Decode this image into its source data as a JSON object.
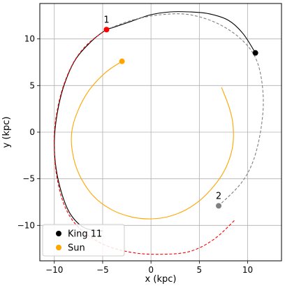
{
  "chart_data": {
    "type": "line",
    "xlabel": "x (kpc)",
    "ylabel": "y (kpc)",
    "xlim": [
      -11.5,
      13.5
    ],
    "ylim": [
      -13.8,
      13.8
    ],
    "xticks": [
      -10,
      -5,
      0,
      5,
      10
    ],
    "yticks": [
      -10,
      -5,
      0,
      5,
      10
    ],
    "grid": true,
    "legend_position": "bottom-left",
    "colors": {
      "king11": "#000000",
      "sun": "#ffa500",
      "king11_alt": "#808080",
      "red_path": "#ff0000",
      "marker1": "#ff0000"
    },
    "legend": [
      {
        "label": "King 11",
        "color": "#000000"
      },
      {
        "label": "Sun",
        "color": "#ffa500"
      }
    ],
    "annotations": [
      {
        "text": "1",
        "x": -4.6,
        "y": 11.0
      },
      {
        "text": "2",
        "x": 7.0,
        "y": -7.9
      }
    ],
    "series": [
      {
        "name": "King 11",
        "style": "solid",
        "color": "#000000",
        "points": [
          [
            10.8,
            8.5
          ],
          [
            9.5,
            10.6
          ],
          [
            8,
            12
          ],
          [
            6,
            12.7
          ],
          [
            4,
            12.9
          ],
          [
            2,
            12.9
          ],
          [
            0,
            12.6
          ],
          [
            -2,
            11.9
          ],
          [
            -4,
            11.2
          ],
          [
            -4.6,
            11
          ],
          [
            -6,
            9.9
          ],
          [
            -7.8,
            7.8
          ],
          [
            -9,
            5
          ],
          [
            -9.7,
            2
          ],
          [
            -10,
            -1
          ],
          [
            -9.8,
            -4
          ],
          [
            -9.1,
            -7
          ],
          [
            -8.2,
            -9
          ],
          [
            -6.8,
            -10.3
          ],
          [
            -5,
            -10.6
          ]
        ]
      },
      {
        "name": "",
        "style": "dashed",
        "color": "#808080",
        "points": [
          [
            -4.6,
            11
          ],
          [
            -2,
            12
          ],
          [
            1,
            12.6
          ],
          [
            4,
            12.6
          ],
          [
            7,
            11.6
          ],
          [
            9.5,
            9.8
          ],
          [
            11,
            7.5
          ],
          [
            11.6,
            4
          ],
          [
            11.4,
            0.5
          ],
          [
            10.6,
            -3
          ],
          [
            9.3,
            -5.5
          ],
          [
            7,
            -7.9
          ]
        ]
      },
      {
        "name": "",
        "style": "dashed",
        "color": "#ff0000",
        "points": [
          [
            -4.6,
            11
          ],
          [
            -6.5,
            9.5
          ],
          [
            -8,
            7.5
          ],
          [
            -9.2,
            4.5
          ],
          [
            -9.9,
            1
          ],
          [
            -10,
            -2
          ],
          [
            -9.7,
            -5
          ],
          [
            -8.9,
            -8
          ],
          [
            -7.5,
            -10.2
          ],
          [
            -5,
            -12
          ],
          [
            -2,
            -12.9
          ],
          [
            1,
            -13.1
          ],
          [
            4,
            -12.8
          ],
          [
            6.5,
            -11.5
          ],
          [
            8.7,
            -9.4
          ]
        ]
      },
      {
        "name": "Sun",
        "style": "solid",
        "color": "#ffa500",
        "points": [
          [
            -3,
            7.6
          ],
          [
            -4.7,
            6.4
          ],
          [
            -6.4,
            4.5
          ],
          [
            -7.6,
            2.2
          ],
          [
            -8.2,
            0
          ],
          [
            -8.1,
            -2.3
          ],
          [
            -7.4,
            -4.6
          ],
          [
            -6,
            -6.8
          ],
          [
            -4.1,
            -8.3
          ],
          [
            -2,
            -9.1
          ],
          [
            0,
            -9.3
          ],
          [
            2,
            -9
          ],
          [
            4,
            -8.1
          ],
          [
            5.8,
            -6.6
          ],
          [
            7.5,
            -4.3
          ],
          [
            8.4,
            -1.8
          ],
          [
            8.5,
            0.6
          ],
          [
            8.1,
            2.6
          ],
          [
            7.3,
            4.8
          ]
        ]
      }
    ],
    "markers": [
      {
        "x": 10.8,
        "y": 8.5,
        "color": "#000000"
      },
      {
        "x": -4.6,
        "y": 11.0,
        "color": "#ff0000"
      },
      {
        "x": 7.0,
        "y": -7.9,
        "color": "#808080"
      },
      {
        "x": -3.0,
        "y": 7.6,
        "color": "#ffa500"
      }
    ]
  }
}
